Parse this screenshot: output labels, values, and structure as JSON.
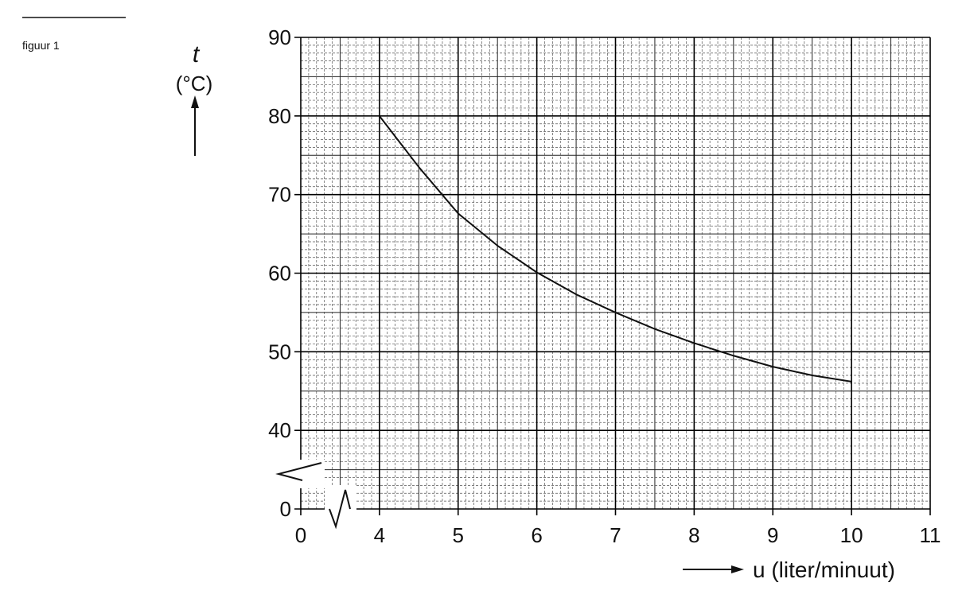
{
  "figure_label": "figuur 1",
  "chart_data": {
    "type": "line",
    "y_label": "t",
    "y_unit": "(°C)",
    "x_label": "u (liter/minuut)",
    "x": [
      4,
      4.5,
      5,
      5.5,
      6,
      6.5,
      7,
      7.5,
      8,
      8.5,
      9,
      9.5,
      10
    ],
    "series": [
      {
        "color": "#111111",
        "values": [
          80,
          73.5,
          67.6,
          63.5,
          60.1,
          57.3,
          55,
          52.9,
          51.1,
          49.5,
          48.1,
          47,
          46.2
        ]
      }
    ],
    "xlim": [
      0,
      11
    ],
    "xticks": [
      0,
      4,
      5,
      6,
      7,
      8,
      9,
      10,
      11
    ],
    "ylim": [
      0,
      90
    ],
    "yticks": [
      0,
      40,
      50,
      60,
      70,
      80,
      90
    ],
    "x_axis_break": true,
    "y_axis_break": true,
    "grid": true
  }
}
